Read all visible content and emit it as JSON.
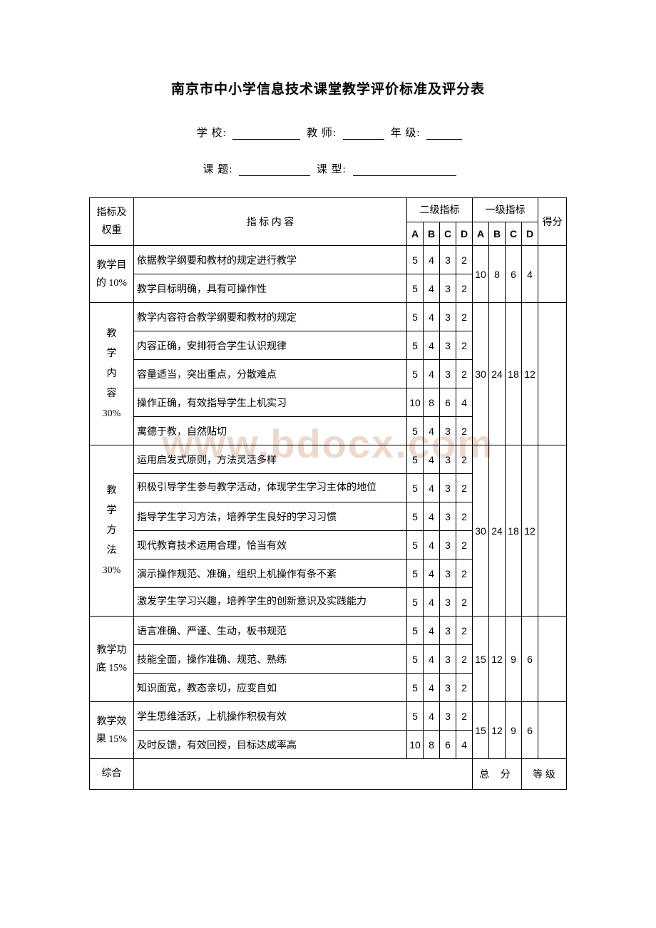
{
  "title": "南京市中小学信息技术课堂教学评价标准及评分表",
  "form": {
    "school_label": "学  校:",
    "teacher_label": "教  师:",
    "grade_label": "年  级:",
    "topic_label": "课  题:",
    "type_label": "课  型:"
  },
  "header": {
    "weight": "指标及权重",
    "content": "指  标  内  容",
    "l2": "二级指标",
    "l1": "一级指标",
    "score": "得分",
    "A": "A",
    "B": "B",
    "C": "C",
    "D": "D"
  },
  "sections": [
    {
      "label": "教学目的 10%",
      "l1": [
        "10",
        "8",
        "6",
        "4"
      ],
      "rows": [
        {
          "desc": "依据教学纲要和教材的规定进行教学",
          "s": [
            "5",
            "4",
            "3",
            "2"
          ]
        },
        {
          "desc": "教学目标明确，具有可操作性",
          "s": [
            "5",
            "4",
            "3",
            "2"
          ]
        }
      ]
    },
    {
      "label": "教学内容30%",
      "label_lines": [
        "教",
        "学",
        "内",
        "容",
        "30%"
      ],
      "l1": [
        "30",
        "24",
        "18",
        "12"
      ],
      "rows": [
        {
          "desc": "教学内容符合教学纲要和教材的规定",
          "s": [
            "5",
            "4",
            "3",
            "2"
          ]
        },
        {
          "desc": "内容正确，安排符合学生认识规律",
          "s": [
            "5",
            "4",
            "3",
            "2"
          ]
        },
        {
          "desc": "容量适当，突出重点，分散难点",
          "s": [
            "5",
            "4",
            "3",
            "2"
          ]
        },
        {
          "desc": "操作正确，有效指导学生上机实习",
          "s": [
            "10",
            "8",
            "6",
            "4"
          ]
        },
        {
          "desc": "寓德于教，自然贴切",
          "s": [
            "5",
            "4",
            "3",
            "2"
          ]
        }
      ]
    },
    {
      "label": "教学方法30%",
      "label_lines": [
        "教",
        "学",
        "方",
        "法",
        "30%"
      ],
      "l1": [
        "30",
        "24",
        "18",
        "12"
      ],
      "rows": [
        {
          "desc": "运用启发式原则，方法灵活多样",
          "s": [
            "5",
            "4",
            "3",
            "2"
          ]
        },
        {
          "desc": "积极引导学生参与教学活动，体现学生学习主体的地位",
          "s": [
            "5",
            "4",
            "3",
            "2"
          ],
          "multiline": true
        },
        {
          "desc": "指导学生学习方法，培养学生良好的学习习惯",
          "s": [
            "5",
            "4",
            "3",
            "2"
          ]
        },
        {
          "desc": "现代教育技术运用合理，恰当有效",
          "s": [
            "5",
            "4",
            "3",
            "2"
          ]
        },
        {
          "desc": "演示操作规范、准确，组织上机操作有条不紊",
          "s": [
            "5",
            "4",
            "3",
            "2"
          ]
        },
        {
          "desc": "激发学生学习兴趣，培养学生的创新意识及实践能力",
          "s": [
            "5",
            "4",
            "3",
            "2"
          ],
          "multiline": true
        }
      ]
    },
    {
      "label": "教学功底 15%",
      "l1": [
        "15",
        "12",
        "9",
        "6"
      ],
      "rows": [
        {
          "desc": "语言准确、严谨、生动，板书规范",
          "s": [
            "5",
            "4",
            "3",
            "2"
          ]
        },
        {
          "desc": "技能全面，操作准确、规范、熟练",
          "s": [
            "5",
            "4",
            "3",
            "2"
          ]
        },
        {
          "desc": "知识面宽，教态亲切，应变自如",
          "s": [
            "5",
            "4",
            "3",
            "2"
          ]
        }
      ]
    },
    {
      "label": "教学效果 15%",
      "l1": [
        "15",
        "12",
        "9",
        "6"
      ],
      "rows": [
        {
          "desc": "学生思维活跃，上机操作积极有效",
          "s": [
            "5",
            "4",
            "3",
            "2"
          ]
        },
        {
          "desc": "及时反馈，有效回授，目标达成率高",
          "s": [
            "10",
            "8",
            "6",
            "4"
          ]
        }
      ]
    }
  ],
  "footer": {
    "zonghe": "综合",
    "total": "总 分",
    "grade": "等 级"
  },
  "watermark": "www.bdocx.com",
  "colors": {
    "text": "#000000",
    "background": "#ffffff",
    "border": "#000000",
    "watermark": "#e9d3c6"
  }
}
